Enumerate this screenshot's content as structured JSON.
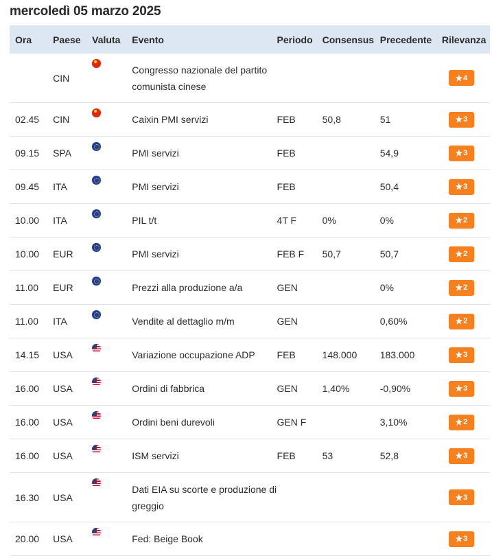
{
  "page_title": "mercoledì 05 marzo 2025",
  "columns": {
    "ora": "Ora",
    "paese": "Paese",
    "valuta": "Valuta",
    "evento": "Evento",
    "periodo": "Periodo",
    "consensus": "Consensus",
    "precedente": "Precedente",
    "rilevanza": "Rilevanza"
  },
  "rows": [
    {
      "ora": "",
      "paese": "CIN",
      "flag": "china-flag-icon",
      "evento": "Congresso nazionale del partito comunista cinese",
      "periodo": "",
      "consensus": "",
      "precedente": "",
      "rilevanza": "4"
    },
    {
      "ora": "02.45",
      "paese": "CIN",
      "flag": "china-flag-icon",
      "evento": "Caixin PMI servizi",
      "periodo": "FEB",
      "consensus": "50,8",
      "precedente": "51",
      "rilevanza": "3"
    },
    {
      "ora": "09.15",
      "paese": "SPA",
      "flag": "eu-flag-icon",
      "evento": "PMI servizi",
      "periodo": "FEB",
      "consensus": "",
      "precedente": "54,9",
      "rilevanza": "3"
    },
    {
      "ora": "09.45",
      "paese": "ITA",
      "flag": "eu-flag-icon",
      "evento": "PMI servizi",
      "periodo": "FEB",
      "consensus": "",
      "precedente": "50,4",
      "rilevanza": "3"
    },
    {
      "ora": "10.00",
      "paese": "ITA",
      "flag": "eu-flag-icon",
      "evento": "PIL t/t",
      "periodo": "4T F",
      "consensus": "0%",
      "precedente": "0%",
      "rilevanza": "2"
    },
    {
      "ora": "10.00",
      "paese": "EUR",
      "flag": "eu-flag-icon",
      "evento": "PMI servizi",
      "periodo": "FEB F",
      "consensus": "50,7",
      "precedente": "50,7",
      "rilevanza": "2"
    },
    {
      "ora": "11.00",
      "paese": "EUR",
      "flag": "eu-flag-icon",
      "evento": "Prezzi alla produzione a/a",
      "periodo": "GEN",
      "consensus": "",
      "precedente": "0%",
      "rilevanza": "2"
    },
    {
      "ora": "11.00",
      "paese": "ITA",
      "flag": "eu-flag-icon",
      "evento": "Vendite al dettaglio m/m",
      "periodo": "GEN",
      "consensus": "",
      "precedente": "0,60%",
      "rilevanza": "2"
    },
    {
      "ora": "14.15",
      "paese": "USA",
      "flag": "us-flag-icon",
      "evento": "Variazione occupazione ADP",
      "periodo": "FEB",
      "consensus": "148.000",
      "precedente": "183.000",
      "rilevanza": "3"
    },
    {
      "ora": "16.00",
      "paese": "USA",
      "flag": "us-flag-icon",
      "evento": "Ordini di fabbrica",
      "periodo": "GEN",
      "consensus": "1,40%",
      "precedente": "-0,90%",
      "rilevanza": "3"
    },
    {
      "ora": "16.00",
      "paese": "USA",
      "flag": "us-flag-icon",
      "evento": "Ordini beni durevoli",
      "periodo": "GEN F",
      "consensus": "",
      "precedente": "3,10%",
      "rilevanza": "2"
    },
    {
      "ora": "16.00",
      "paese": "USA",
      "flag": "us-flag-icon",
      "evento": "ISM servizi",
      "periodo": "FEB",
      "consensus": "53",
      "precedente": "52,8",
      "rilevanza": "3"
    },
    {
      "ora": "16.30",
      "paese": "USA",
      "flag": "us-flag-icon",
      "evento": "Dati EIA su scorte e produzione di greggio",
      "periodo": "",
      "consensus": "",
      "precedente": "",
      "rilevanza": "3"
    },
    {
      "ora": "20.00",
      "paese": "USA",
      "flag": "us-flag-icon",
      "evento": "Fed: Beige Book",
      "periodo": "",
      "consensus": "",
      "precedente": "",
      "rilevanza": "3"
    }
  ],
  "colors": {
    "header_bg": "#dde7f3",
    "badge": "#f4801f"
  }
}
